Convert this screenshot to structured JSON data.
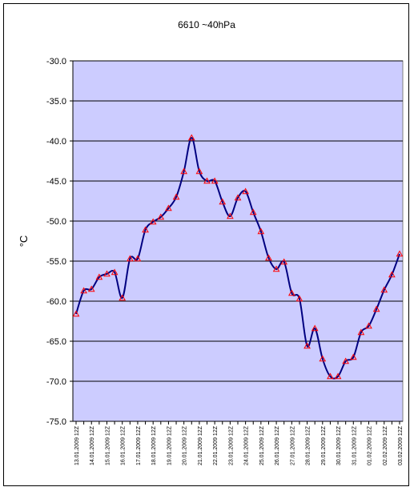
{
  "chart_data": {
    "type": "line",
    "title": "6610 ~40hPa",
    "ylabel": "°C",
    "xlabel": "",
    "ylim": [
      -75,
      -30
    ],
    "yticks": [
      "-30.0",
      "-35.0",
      "-40.0",
      "-45.0",
      "-50.0",
      "-55.0",
      "-60.0",
      "-65.0",
      "-70.0",
      "-75.0"
    ],
    "grid": true,
    "legend": "none",
    "plot_bg": "#ccccff",
    "line_color": "#000080",
    "marker_color": "#ff0000",
    "x_tick_labels": [
      "13.01.2009 12Z",
      "14.01.2009 12Z",
      "15.01.2009 12Z",
      "16.01.2009 12Z",
      "17.01.2009 12Z",
      "18.01.2009 12Z",
      "19.01.2009 12Z",
      "20.01.2009 12Z",
      "21.01.2009 12Z",
      "22.01.2009 12Z",
      "23.01.2009 12Z",
      "24.01.2009 12Z",
      "25.01.2009 12Z",
      "26.01.2009 12Z",
      "27.01.2009 12Z",
      "28.01.2009 12Z",
      "29.01.2009 12Z",
      "30.01.2009 12Z",
      "31.01.2009 12Z",
      "01.02.2009 12Z",
      "02.02.2009 12Z",
      "03.02.2009 12Z"
    ],
    "series": [
      {
        "values": [
          -61.6,
          -58.7,
          -58.5,
          -57.0,
          -56.6,
          -56.4,
          -59.6,
          -54.7,
          -54.7,
          -51.1,
          -50.1,
          -49.5,
          -48.4,
          -47.0,
          -43.8,
          -39.6,
          -43.8,
          -45.0,
          -45.0,
          -47.6,
          -49.4,
          -47.1,
          -46.3,
          -48.9,
          -51.3,
          -54.6,
          -56.0,
          -55.1,
          -59.0,
          -59.7,
          -65.6,
          -63.4,
          -67.2,
          -69.4,
          -69.4,
          -67.5,
          -67.0,
          -63.9,
          -63.1,
          -61.0,
          -58.6,
          -56.7,
          -54.1
        ]
      }
    ]
  }
}
